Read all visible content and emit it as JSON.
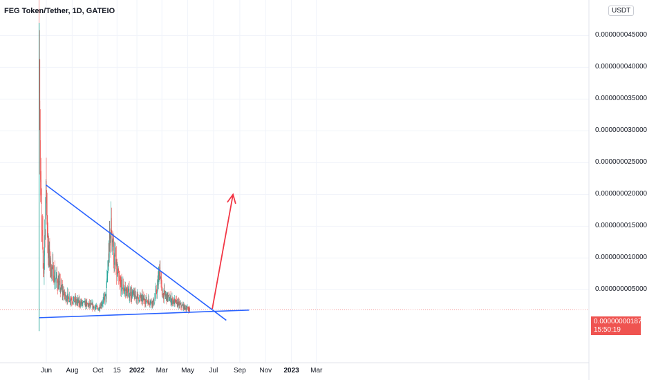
{
  "header": {
    "title": "FEG Token/Tether, 1D, GATEIO",
    "currency": "USDT"
  },
  "price_tag": {
    "price": "0.000000001871",
    "countdown": "15:50:19"
  },
  "colors": {
    "up": "#26a69a",
    "down": "#ef5350",
    "trendline": "#2962ff",
    "arrow": "#f23645",
    "grid": "#f0f3fa"
  },
  "chart_data": {
    "type": "candlestick",
    "title": "FEG Token/Tether, 1D, GATEIO",
    "y_axis_labels": [
      "0.000000045000",
      "0.000000040000",
      "0.000000035000",
      "0.000000030000",
      "0.000000025000",
      "0.000000020000",
      "0.000000015000",
      "0.000000010000",
      "0.000000005000"
    ],
    "y_ticks": [
      4.5e-08,
      4e-08,
      3.5e-08,
      3e-08,
      2.5e-08,
      2e-08,
      1.5e-08,
      1e-08,
      5e-09
    ],
    "x_axis_labels": [
      "Jun",
      "Aug",
      "Oct",
      "15",
      "2022",
      "Mar",
      "May",
      "Jul",
      "Sep",
      "Nov",
      "2023",
      "Mar"
    ],
    "x_tick_dates": [
      "2021-06-01",
      "2021-08-01",
      "2021-10-01",
      "2021-11-15",
      "2022-01-01",
      "2022-03-01",
      "2022-05-01",
      "2022-07-01",
      "2022-09-01",
      "2022-11-01",
      "2023-01-01",
      "2023-03-01"
    ],
    "ylim": [
      -4.5e-09,
      5e-08
    ],
    "last_price": 1.871e-09,
    "price_path": [
      {
        "date": "2021-05-15",
        "close": 4.7e-08
      },
      {
        "date": "2021-05-18",
        "close": 2.2e-08
      },
      {
        "date": "2021-05-22",
        "close": 1.3e-08
      },
      {
        "date": "2021-05-26",
        "close": 8e-09
      },
      {
        "date": "2021-05-29",
        "close": 1.6e-08
      },
      {
        "date": "2021-06-01",
        "close": 2.1e-08
      },
      {
        "date": "2021-06-05",
        "close": 1.1e-08
      },
      {
        "date": "2021-06-12",
        "close": 8.5e-09
      },
      {
        "date": "2021-06-25",
        "close": 6.5e-09
      },
      {
        "date": "2021-07-15",
        "close": 4e-09
      },
      {
        "date": "2021-08-15",
        "close": 3e-09
      },
      {
        "date": "2021-09-15",
        "close": 2.5e-09
      },
      {
        "date": "2021-10-02",
        "close": 2e-09
      },
      {
        "date": "2021-10-20",
        "close": 4e-09
      },
      {
        "date": "2021-10-28",
        "close": 1.2e-08
      },
      {
        "date": "2021-11-02",
        "close": 1.5e-08
      },
      {
        "date": "2021-11-08",
        "close": 1e-08
      },
      {
        "date": "2021-11-20",
        "close": 6e-09
      },
      {
        "date": "2021-12-10",
        "close": 4.5e-09
      },
      {
        "date": "2022-01-15",
        "close": 3.5e-09
      },
      {
        "date": "2022-02-10",
        "close": 3e-09
      },
      {
        "date": "2022-02-20",
        "close": 6e-09
      },
      {
        "date": "2022-02-24",
        "close": 8.5e-09
      },
      {
        "date": "2022-03-01",
        "close": 4.5e-09
      },
      {
        "date": "2022-03-20",
        "close": 3.5e-09
      },
      {
        "date": "2022-04-15",
        "close": 2.5e-09
      },
      {
        "date": "2022-05-06",
        "close": 1.871e-09
      }
    ],
    "annotations": {
      "upper_trendline": [
        {
          "date": "2021-05-31",
          "price": 2.15e-08
        },
        {
          "date": "2022-07-31",
          "price": 2e-10
        }
      ],
      "lower_trendline": [
        {
          "date": "2021-05-15",
          "price": 6e-10
        },
        {
          "date": "2022-09-23",
          "price": 1.8e-09
        }
      ],
      "arrow": [
        {
          "date": "2022-06-28",
          "price": 2e-09
        },
        {
          "date": "2022-08-16",
          "price": 2e-08
        }
      ]
    }
  }
}
